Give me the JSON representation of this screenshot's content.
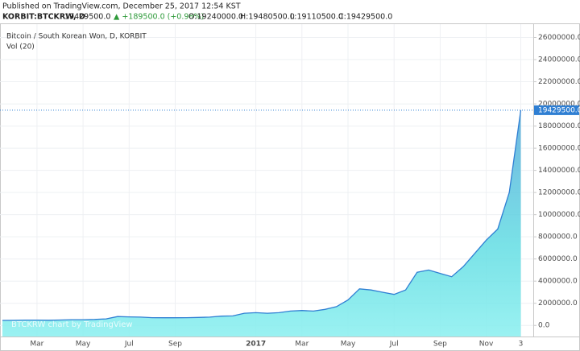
{
  "header": {
    "published": "Published on TradingView.com, December 25, 2017 12:54 KST",
    "symbol": "KORBIT:BTCKRW, D",
    "last": "19429500.0",
    "change": "▲ +189500.0 (+0.98%)",
    "open": "O:19240000.0",
    "high": "H:19480500.0",
    "low": "L:19110500.0",
    "close": "C:19429500.0"
  },
  "chart_data": {
    "type": "area",
    "title": "Bitcoin / South Korean Won, D, KORBIT",
    "subtitle": "Vol (20)",
    "watermark": "BTCKRW chart by TradingView",
    "categories": [
      null,
      null,
      null,
      "Mar",
      null,
      null,
      null,
      "May",
      null,
      null,
      null,
      "Jul",
      null,
      null,
      null,
      "Sep",
      null,
      null,
      null,
      null,
      null,
      null,
      "2017",
      null,
      null,
      null,
      "Mar",
      null,
      null,
      null,
      "May",
      null,
      null,
      null,
      "Jul",
      null,
      null,
      null,
      "Sep",
      null,
      null,
      null,
      "Nov",
      null,
      null,
      "3"
    ],
    "series": [
      {
        "name": "BTCKRW",
        "color": "#2f7fd3",
        "values": [
          450000,
          460000,
          480000,
          480000,
          470000,
          490000,
          520000,
          520000,
          540000,
          590000,
          800000,
          770000,
          750000,
          700000,
          690000,
          690000,
          700000,
          720000,
          750000,
          840000,
          860000,
          1100000,
          1150000,
          1100000,
          1150000,
          1300000,
          1350000,
          1300000,
          1450000,
          1700000,
          2300000,
          3300000,
          3200000,
          3000000,
          2800000,
          3200000,
          4800000,
          5000000,
          4700000,
          4400000,
          5300000,
          6500000,
          7700000,
          8700000,
          12000000,
          19429500
        ]
      }
    ],
    "last_price": {
      "value": 19429500,
      "label": "19429500.0"
    },
    "ylim": [
      -1000000,
      27200000
    ],
    "yticks": [
      {
        "value": 0,
        "label": "0.0"
      },
      {
        "value": 2000000,
        "label": "2000000.0"
      },
      {
        "value": 4000000,
        "label": "4000000.0"
      },
      {
        "value": 6000000,
        "label": "6000000.0"
      },
      {
        "value": 8000000,
        "label": "8000000.0"
      },
      {
        "value": 10000000,
        "label": "10000000.0"
      },
      {
        "value": 12000000,
        "label": "12000000.0"
      },
      {
        "value": 14000000,
        "label": "14000000.0"
      },
      {
        "value": 16000000,
        "label": "16000000.0"
      },
      {
        "value": 18000000,
        "label": "18000000.0"
      },
      {
        "value": 20000000,
        "label": "20000000.0"
      },
      {
        "value": 22000000,
        "label": "22000000.0"
      },
      {
        "value": 24000000,
        "label": "24000000.0"
      },
      {
        "value": 26000000,
        "label": "26000000.0"
      }
    ],
    "grid": true
  }
}
